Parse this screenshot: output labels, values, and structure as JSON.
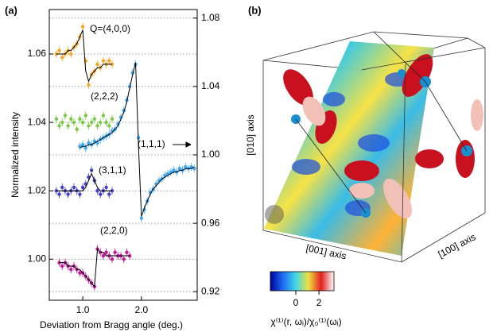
{
  "chart_data": {
    "type": "scatter",
    "panel_label": "(a)",
    "y_label": "Normalized intensity",
    "x_label": "Deviation from Bragg angle (deg.)",
    "xlim": [
      0.43,
      2.95
    ],
    "xticks": [
      {
        "value": 1,
        "label": "1.0"
      },
      {
        "value": 2,
        "label": "2.0"
      }
    ],
    "ylim": [
      0.988,
      1.073
    ],
    "yticks": [
      {
        "value": 1.0,
        "label": "1.00"
      },
      {
        "value": 1.02,
        "label": "1.02"
      },
      {
        "value": 1.04,
        "label": "1.04"
      },
      {
        "value": 1.06,
        "label": "1.06"
      }
    ],
    "y2lim": [
      0.915,
      1.085
    ],
    "y2ticks": [
      {
        "value": 0.92,
        "label": "0.92"
      },
      {
        "value": 0.96,
        "label": "0.96"
      },
      {
        "value": 1.0,
        "label": "1.00"
      },
      {
        "value": 1.04,
        "label": "1.04"
      },
      {
        "value": 1.08,
        "label": "1.08"
      }
    ],
    "grid": true,
    "fit_color": "#000000",
    "series": [
      {
        "name": "Q=(4,0,0)",
        "color": "#f5a623",
        "x": [
          0.55,
          0.6,
          0.65,
          0.7,
          0.75,
          0.8,
          0.85,
          0.9,
          0.95,
          1.0,
          1.05,
          1.1,
          1.15,
          1.2,
          1.25,
          1.3,
          1.35,
          1.4,
          1.45,
          1.5
        ],
        "values": [
          1.06,
          1.061,
          1.059,
          1.06,
          1.061,
          1.06,
          1.062,
          1.063,
          1.065,
          1.068,
          1.058,
          1.051,
          1.054,
          1.055,
          1.057,
          1.056,
          1.058,
          1.057,
          1.058,
          1.057
        ],
        "fit": [
          1.06,
          1.06,
          1.06,
          1.06,
          1.061,
          1.061,
          1.062,
          1.063,
          1.065,
          1.067,
          1.055,
          1.052,
          1.054,
          1.055,
          1.056,
          1.056,
          1.057,
          1.057,
          1.057,
          1.057
        ]
      },
      {
        "name": "(2,2,2)",
        "color": "#7ac943",
        "x": [
          0.55,
          0.6,
          0.65,
          0.7,
          0.75,
          0.8,
          0.85,
          0.9,
          0.95,
          1.0,
          1.05,
          1.1,
          1.15,
          1.2,
          1.25,
          1.3,
          1.35,
          1.4,
          1.45,
          1.5
        ],
        "values": [
          1.041,
          1.039,
          1.04,
          1.042,
          1.039,
          1.041,
          1.04,
          1.038,
          1.041,
          1.04,
          1.042,
          1.039,
          1.04,
          1.041,
          1.039,
          1.04,
          1.042,
          1.04,
          1.039,
          1.041
        ]
      },
      {
        "name": "(1,1,1)",
        "color": "#3fa9f5",
        "axis": "y2",
        "x": [
          0.95,
          1.0,
          1.05,
          1.1,
          1.15,
          1.2,
          1.25,
          1.3,
          1.35,
          1.4,
          1.45,
          1.5,
          1.55,
          1.6,
          1.65,
          1.7,
          1.75,
          1.8,
          1.85,
          1.9,
          1.95,
          2.0,
          2.05,
          2.1,
          2.15,
          2.2,
          2.25,
          2.3,
          2.35,
          2.4,
          2.45,
          2.5,
          2.55,
          2.6,
          2.65,
          2.7,
          2.75,
          2.8,
          2.85,
          2.9
        ],
        "values": [
          1.005,
          1.006,
          1.004,
          1.007,
          1.006,
          1.008,
          1.007,
          1.009,
          1.01,
          1.011,
          1.012,
          1.014,
          1.015,
          1.018,
          1.022,
          1.026,
          1.032,
          1.04,
          1.048,
          1.053,
          1.01,
          0.963,
          0.968,
          0.973,
          0.978,
          0.98,
          0.983,
          0.985,
          0.986,
          0.988,
          0.989,
          0.99,
          0.991,
          0.99,
          0.992,
          0.991,
          0.993,
          0.992,
          0.993,
          0.992
        ],
        "fit": [
          1.004,
          1.005,
          1.005,
          1.006,
          1.006,
          1.007,
          1.008,
          1.009,
          1.01,
          1.011,
          1.012,
          1.013,
          1.015,
          1.017,
          1.021,
          1.025,
          1.031,
          1.039,
          1.047,
          1.054,
          1.005,
          0.964,
          0.969,
          0.973,
          0.977,
          0.98,
          0.982,
          0.984,
          0.986,
          0.987,
          0.988,
          0.989,
          0.99,
          0.99,
          0.991,
          0.991,
          0.992,
          0.992,
          0.992,
          0.993
        ]
      },
      {
        "name": "(3,1,1)",
        "color": "#3f3fc8",
        "x": [
          0.55,
          0.6,
          0.65,
          0.7,
          0.75,
          0.8,
          0.85,
          0.9,
          0.95,
          1.0,
          1.05,
          1.1,
          1.15,
          1.2,
          1.25,
          1.3,
          1.35,
          1.4,
          1.45,
          1.5
        ],
        "values": [
          1.02,
          1.019,
          1.021,
          1.02,
          1.019,
          1.02,
          1.021,
          1.02,
          1.019,
          1.021,
          1.022,
          1.024,
          1.026,
          1.023,
          1.02,
          1.019,
          1.02,
          1.021,
          1.019,
          1.02
        ],
        "fit": [
          1.02,
          1.02,
          1.02,
          1.02,
          1.02,
          1.02,
          1.02,
          1.02,
          1.02,
          1.02,
          1.021,
          1.023,
          1.025,
          1.023,
          1.021,
          1.02,
          1.02,
          1.02,
          1.02,
          1.02
        ]
      },
      {
        "name": "(2,2,0)",
        "color": "#c2189a",
        "x": [
          0.6,
          0.65,
          0.7,
          0.75,
          0.8,
          0.85,
          0.9,
          0.95,
          1.0,
          1.05,
          1.1,
          1.15,
          1.2,
          1.25,
          1.3,
          1.35,
          1.4,
          1.45,
          1.5,
          1.55,
          1.6,
          1.65,
          1.7,
          1.75,
          1.8
        ],
        "values": [
          0.999,
          0.998,
          0.999,
          0.998,
          0.997,
          0.998,
          0.997,
          0.996,
          0.996,
          0.995,
          0.994,
          0.993,
          0.992,
          1.003,
          1.002,
          1.001,
          1.002,
          1.001,
          1.0,
          1.002,
          1.001,
          1.001,
          1.0,
          1.002,
          1.001
        ],
        "fit": [
          0.999,
          0.999,
          0.999,
          0.998,
          0.998,
          0.998,
          0.997,
          0.997,
          0.996,
          0.995,
          0.994,
          0.993,
          0.992,
          1.003,
          1.002,
          1.002,
          1.001,
          1.001,
          1.001,
          1.001,
          1.001,
          1.001,
          1.001,
          1.001,
          1.001
        ]
      }
    ]
  },
  "image_b": {
    "panel_label": "(b)",
    "axis_labels": [
      "[010] axis",
      "[001] axis",
      "[100] axis"
    ],
    "colorbar": {
      "lim": [
        -2.2,
        3.3
      ],
      "ticks": [
        0,
        2
      ],
      "label": "χ⁽¹⁾(r, ωᵢ)/χ₀⁽¹⁾(ωᵢ)"
    }
  }
}
